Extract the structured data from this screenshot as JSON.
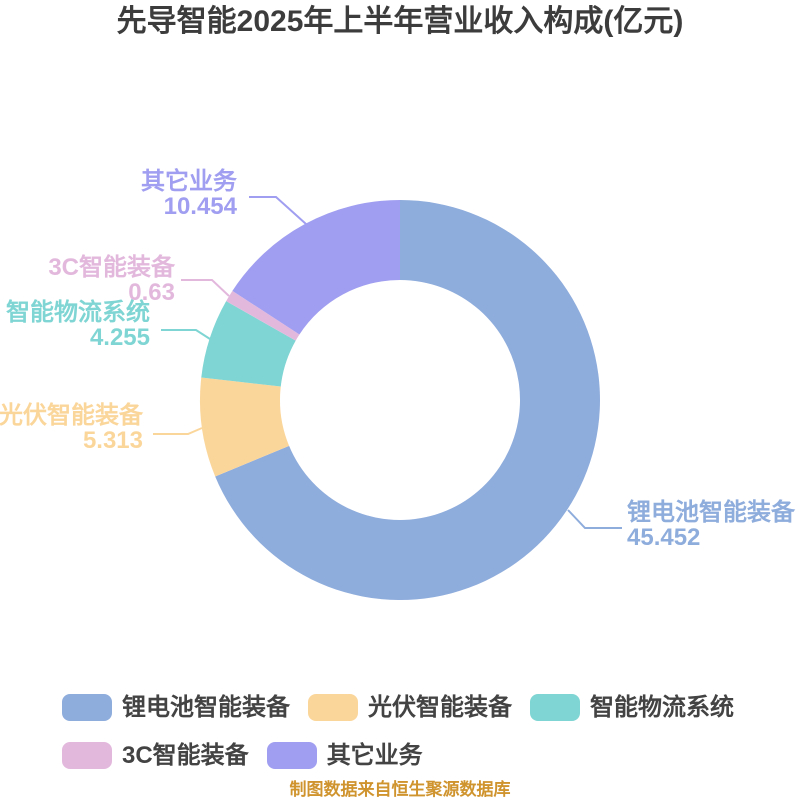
{
  "title": "先导智能2025年上半年营业收入构成(亿元)",
  "footer": "制图数据来自恒生聚源数据库",
  "chart_data": {
    "type": "pie",
    "subtype": "donut",
    "title": "先导智能2025年上半年营业收入构成(亿元)",
    "unit": "亿元",
    "start_angle_deg": 0,
    "clockwise": true,
    "legend_position": "bottom",
    "series": [
      {
        "name": "锂电池智能装备",
        "value": 45.452,
        "color": "#8eacdc"
      },
      {
        "name": "光伏智能装备",
        "value": 5.313,
        "color": "#fbd69b"
      },
      {
        "name": "智能物流系统",
        "value": 4.255,
        "color": "#7fd5d3"
      },
      {
        "name": "3C智能装备",
        "value": 0.63,
        "color": "#e3b8dd"
      },
      {
        "name": "其它业务",
        "value": 10.454,
        "color": "#a09ef0"
      }
    ]
  }
}
